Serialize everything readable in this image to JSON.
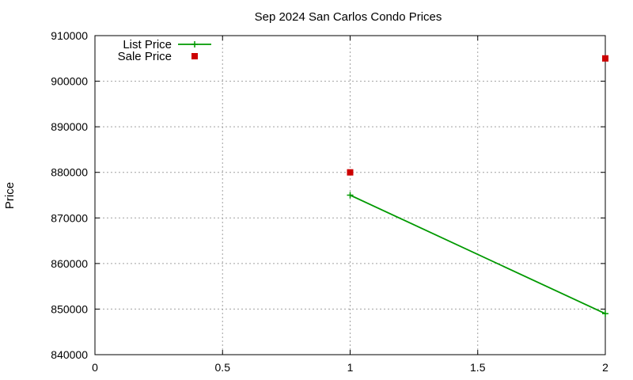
{
  "chart_data": {
    "type": "line",
    "title": "Sep 2024 San Carlos Condo Prices",
    "xlabel": "",
    "ylabel": "Price",
    "xlim": [
      0,
      2
    ],
    "ylim": [
      840000,
      910000
    ],
    "x_ticks": [
      0,
      0.5,
      1,
      1.5,
      2
    ],
    "x_tick_labels": [
      "0",
      "0.5",
      "1",
      "1.5",
      "2"
    ],
    "y_ticks": [
      840000,
      850000,
      860000,
      870000,
      880000,
      890000,
      900000,
      910000
    ],
    "y_tick_labels": [
      "840000",
      "850000",
      "860000",
      "870000",
      "880000",
      "890000",
      "900000",
      "910000"
    ],
    "grid": true,
    "legend_position": "top-left",
    "series": [
      {
        "name": "List Price",
        "style": "line-with-plus-markers",
        "color": "#009900",
        "points": [
          {
            "x": 1,
            "y": 875000
          },
          {
            "x": 2,
            "y": 849000
          }
        ]
      },
      {
        "name": "Sale Price",
        "style": "square-markers",
        "color": "#cc0000",
        "points": [
          {
            "x": 1,
            "y": 880000
          },
          {
            "x": 2,
            "y": 905000
          }
        ]
      }
    ]
  }
}
